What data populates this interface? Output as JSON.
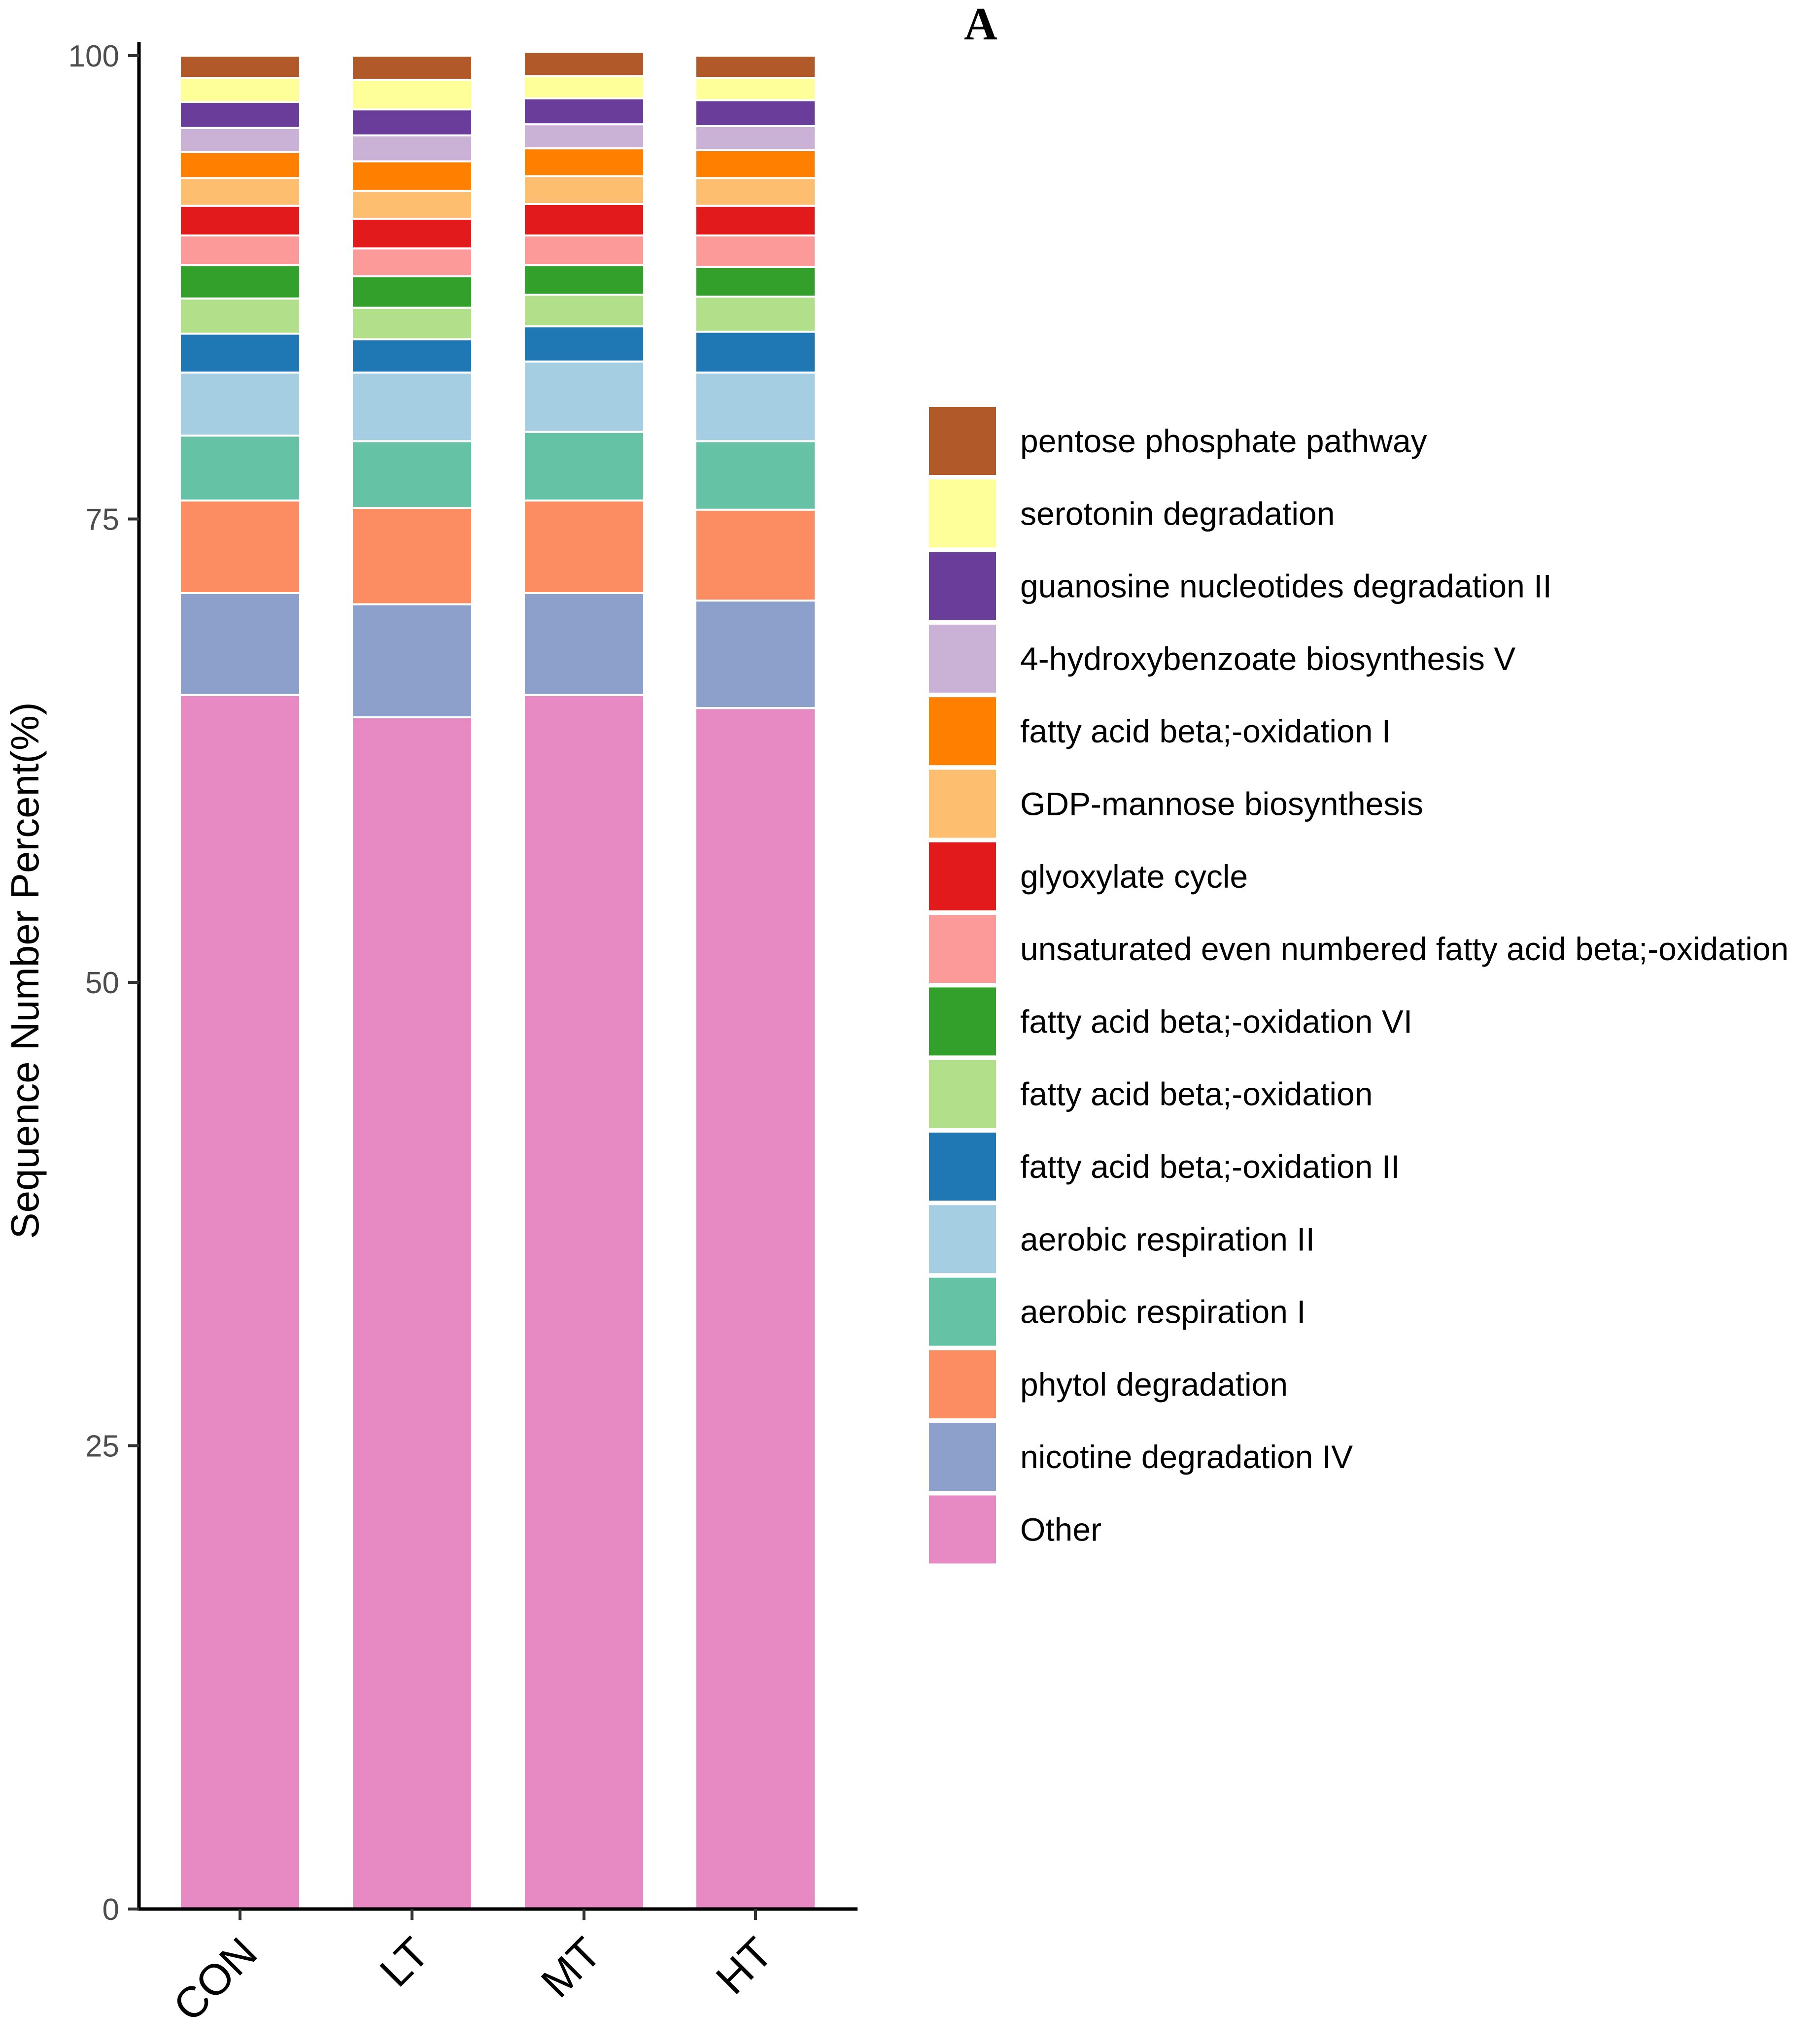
{
  "chart_data": {
    "type": "bar",
    "stacked": true,
    "panel_label": "A",
    "title": "",
    "xlabel": "",
    "ylabel": "Sequence Number Percent(%)",
    "ylim": [
      0,
      100
    ],
    "yticks": [
      0,
      25,
      50,
      75,
      100
    ],
    "categories": [
      "CON",
      "LT",
      "MT",
      "HT"
    ],
    "legend_position": "right",
    "series": [
      {
        "name": "Other",
        "color": "#e78ac3",
        "values": [
          65.5,
          64.3,
          65.5,
          64.8
        ]
      },
      {
        "name": "nicotine degradation IV",
        "color": "#8da0cb",
        "values": [
          5.5,
          6.1,
          5.5,
          5.8
        ]
      },
      {
        "name": "phytol degradation",
        "color": "#fc8d62",
        "values": [
          5.0,
          5.2,
          5.0,
          4.9
        ]
      },
      {
        "name": "aerobic respiration I",
        "color": "#66c2a5",
        "values": [
          3.5,
          3.6,
          3.7,
          3.7
        ]
      },
      {
        "name": "aerobic respiration II",
        "color": "#a6cee3",
        "values": [
          3.4,
          3.7,
          3.8,
          3.7
        ]
      },
      {
        "name": "fatty acid beta;-oxidation II",
        "color": "#1f78b4",
        "values": [
          2.1,
          1.8,
          1.9,
          2.2
        ]
      },
      {
        "name": "fatty acid beta;-oxidation",
        "color": "#b2df8a",
        "values": [
          1.9,
          1.7,
          1.7,
          1.9
        ]
      },
      {
        "name": "fatty acid beta;-oxidation VI",
        "color": "#33a02c",
        "values": [
          1.8,
          1.7,
          1.6,
          1.6
        ]
      },
      {
        "name": "unsaturated even numbered fatty acid beta;-oxidation",
        "color": "#fb9a99",
        "values": [
          1.6,
          1.5,
          1.6,
          1.7
        ]
      },
      {
        "name": "glyoxylate cycle",
        "color": "#e31a1c",
        "values": [
          1.6,
          1.6,
          1.7,
          1.6
        ]
      },
      {
        "name": "GDP-mannose biosynthesis",
        "color": "#fdbf6f",
        "values": [
          1.5,
          1.5,
          1.5,
          1.5
        ]
      },
      {
        "name": "fatty acid beta;-oxidation I",
        "color": "#ff7f00",
        "values": [
          1.4,
          1.6,
          1.5,
          1.5
        ]
      },
      {
        "name": "4-hydroxybenzoate biosynthesis V",
        "color": "#cab2d6",
        "values": [
          1.3,
          1.4,
          1.3,
          1.3
        ]
      },
      {
        "name": "guanosine nucleotides degradation II",
        "color": "#6a3d9a",
        "values": [
          1.4,
          1.4,
          1.4,
          1.4
        ]
      },
      {
        "name": "serotonin degradation",
        "color": "#ffff99",
        "values": [
          1.3,
          1.6,
          1.2,
          1.2
        ]
      },
      {
        "name": "pentose phosphate pathway",
        "color": "#b15928",
        "values": [
          1.2,
          1.3,
          1.3,
          1.2
        ]
      }
    ]
  }
}
